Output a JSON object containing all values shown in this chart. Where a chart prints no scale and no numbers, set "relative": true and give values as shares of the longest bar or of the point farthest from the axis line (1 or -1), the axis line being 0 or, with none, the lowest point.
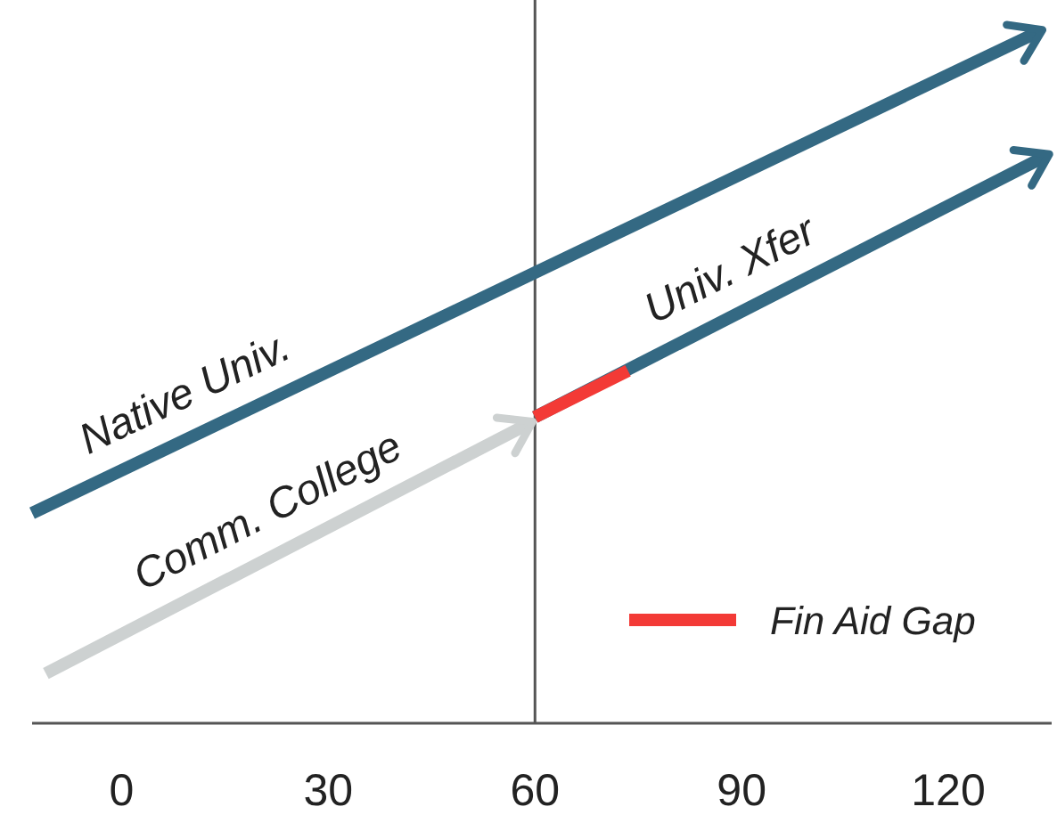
{
  "chart_data": {
    "type": "line",
    "relative": true,
    "xlim": [
      -13,
      135
    ],
    "xticks": [
      0,
      30,
      60,
      90,
      120
    ],
    "legend": "bottom right",
    "ref_lines": [
      {
        "axis": "x",
        "value": 60,
        "color": "#555555"
      }
    ],
    "series": [
      {
        "name": "Native Univ.",
        "color": "#346983",
        "x": [
          -13,
          133
        ],
        "values": [
          0.304,
          1
        ]
      },
      {
        "name": "Comm. College",
        "color": "#cdd1d1",
        "x": [
          -11,
          59
        ],
        "values": [
          0.072,
          0.433
        ]
      },
      {
        "name": "Univ. Xfer",
        "color": "#346983",
        "x": [
          60,
          134
        ],
        "values": [
          0.443,
          0.82
        ]
      },
      {
        "name": "Fin Aid Gap",
        "color": "#f33a36",
        "x": [
          60,
          73.5
        ],
        "values": [
          0.443,
          0.51
        ]
      }
    ]
  }
}
